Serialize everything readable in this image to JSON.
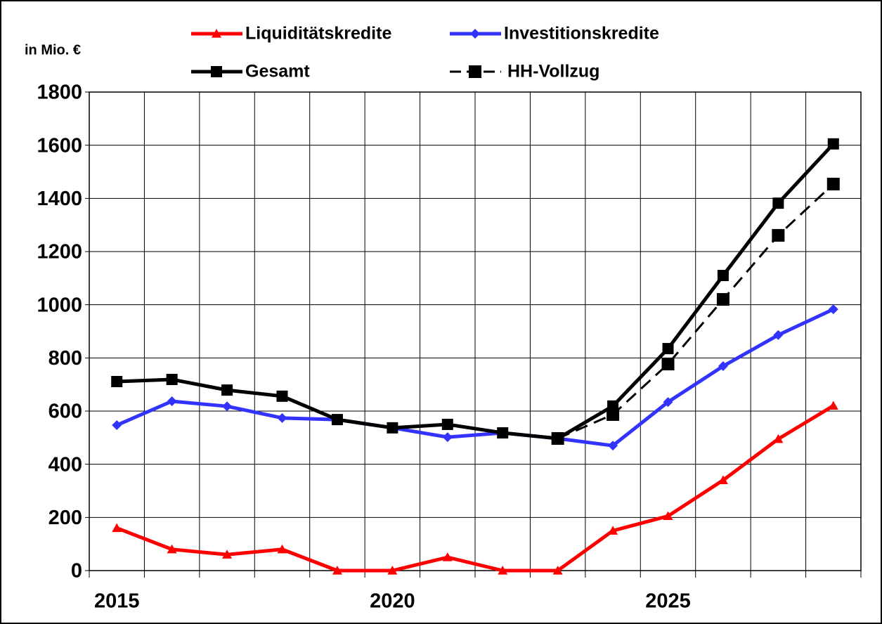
{
  "chart_data": {
    "type": "line",
    "y_label": "in Mio. €",
    "categories": [
      "2015",
      null,
      null,
      null,
      null,
      "2020",
      null,
      null,
      null,
      null,
      "2025",
      null,
      null,
      null
    ],
    "ylim": [
      0,
      1800
    ],
    "yticks": [
      0,
      200,
      400,
      600,
      800,
      1000,
      1200,
      1400,
      1600,
      1800
    ],
    "grid": true,
    "series": [
      {
        "name": "Liquiditätskredite",
        "color": "#ff0000",
        "marker": "triangle",
        "dashed": false,
        "values": [
          160,
          80,
          60,
          80,
          0,
          0,
          50,
          0,
          0,
          150,
          205,
          340,
          495,
          620
        ]
      },
      {
        "name": "Investitionskredite",
        "color": "#3333ff",
        "marker": "diamond",
        "dashed": false,
        "values": [
          547,
          637,
          618,
          574,
          568,
          537,
          502,
          518,
          497,
          470,
          634,
          769,
          886,
          983
        ]
      },
      {
        "name": "Gesamt",
        "color": "#000000",
        "marker": "square",
        "dashed": false,
        "values": [
          711,
          719,
          679,
          656,
          568,
          537,
          550,
          518,
          497,
          619,
          835,
          1110,
          1382,
          1605
        ]
      },
      {
        "name": "HH-Vollzug",
        "color": "#000000",
        "marker": "square",
        "dashed": true,
        "values": [
          null,
          null,
          null,
          null,
          null,
          null,
          null,
          null,
          497,
          587,
          777,
          1020,
          1261,
          1454
        ]
      }
    ]
  }
}
